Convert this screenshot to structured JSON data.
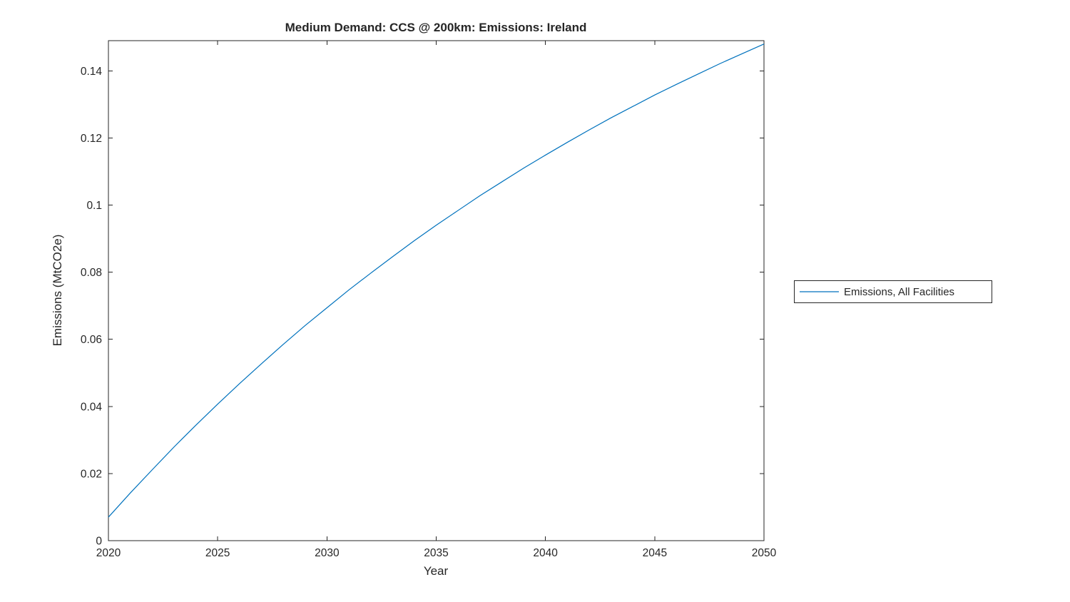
{
  "chart_data": {
    "type": "line",
    "title": "Medium Demand: CCS @ 200km: Emissions: Ireland",
    "xlabel": "Year",
    "ylabel": "Emissions (MtCO2e)",
    "xlim": [
      2020,
      2050
    ],
    "ylim": [
      0,
      0.149
    ],
    "xticks": [
      2020,
      2025,
      2030,
      2035,
      2040,
      2045,
      2050
    ],
    "xtick_labels": [
      "2020",
      "2025",
      "2030",
      "2035",
      "2040",
      "2045",
      "2050"
    ],
    "yticks": [
      0,
      0.02,
      0.04,
      0.06,
      0.08,
      0.1,
      0.12,
      0.14
    ],
    "ytick_labels": [
      "0",
      "0.02",
      "0.04",
      "0.06",
      "0.08",
      "0.1",
      "0.12",
      "0.14"
    ],
    "grid": false,
    "axis_color": "#262626",
    "legend": {
      "position": "right-outside",
      "entries": [
        "Emissions, All Facilities"
      ]
    },
    "series": [
      {
        "name": "Emissions, All Facilities",
        "color": "#0072BD",
        "x": [
          2020,
          2021,
          2022,
          2023,
          2024,
          2025,
          2026,
          2027,
          2028,
          2029,
          2030,
          2031,
          2032,
          2033,
          2034,
          2035,
          2036,
          2037,
          2038,
          2039,
          2040,
          2041,
          2042,
          2043,
          2044,
          2045,
          2046,
          2047,
          2048,
          2049,
          2050
        ],
        "y": [
          0.007,
          0.0142,
          0.0211,
          0.0279,
          0.0344,
          0.0407,
          0.0468,
          0.0527,
          0.0585,
          0.0641,
          0.0694,
          0.0747,
          0.0797,
          0.0846,
          0.0894,
          0.094,
          0.0984,
          0.1028,
          0.1069,
          0.111,
          0.1149,
          0.1187,
          0.1224,
          0.126,
          0.1294,
          0.1328,
          0.136,
          0.1391,
          0.1422,
          0.1451,
          0.148
        ]
      }
    ]
  }
}
